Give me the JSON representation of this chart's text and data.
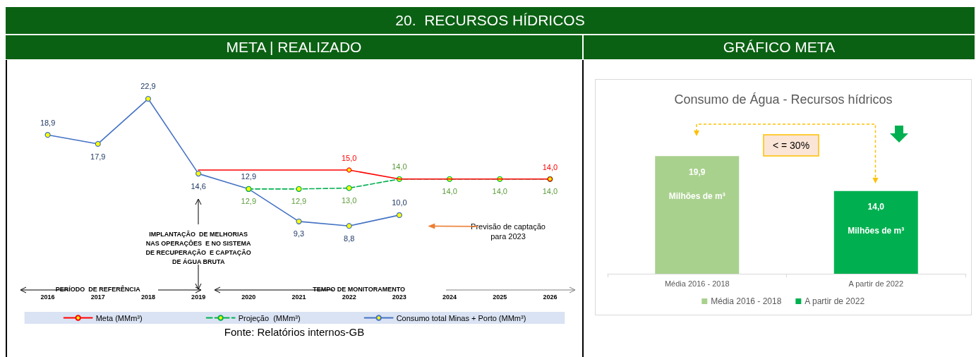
{
  "chart_data": [
    {
      "type": "line",
      "title": "20.  RECURSOS HÍDRICOS",
      "subtitle": "META | REALIZADO",
      "categories": [
        "2016",
        "2017",
        "2018",
        "2019",
        "2020",
        "2021",
        "2022",
        "2023",
        "2024",
        "2025",
        "2026"
      ],
      "series": [
        {
          "name": "Meta (MMm³)",
          "color": "#ff0000",
          "line_style": "solid",
          "marker": "none",
          "values": [
            null,
            null,
            null,
            15.0,
            15.0,
            15.0,
            15.0,
            14.0,
            14.0,
            14.0,
            14.0
          ],
          "value_labels": [
            null,
            null,
            null,
            null,
            null,
            null,
            "15,0",
            null,
            null,
            null,
            "14,0"
          ]
        },
        {
          "name": "Projeção  (MMm³)",
          "color": "#00b050",
          "line_style": "dashed",
          "marker": "circle",
          "values": [
            null,
            null,
            null,
            null,
            12.9,
            12.9,
            13.0,
            14.0,
            14.0,
            14.0,
            14.0
          ],
          "value_labels": [
            null,
            null,
            null,
            null,
            "12,9",
            "12,9",
            "13,0",
            "14,0",
            "14,0",
            "14,0",
            "14,0"
          ]
        },
        {
          "name": "Consumo total Minas + Porto (MMm³)",
          "color": "#4472c4",
          "line_style": "solid",
          "marker": "circle",
          "values": [
            18.9,
            17.9,
            22.9,
            14.6,
            12.9,
            9.3,
            8.8,
            10.0,
            null,
            null,
            null
          ],
          "value_labels": [
            "18,9",
            "17,9",
            "22,9",
            "14,6",
            "12,9",
            "9,3",
            "8,8",
            "10,0",
            null,
            null,
            null
          ]
        }
      ],
      "legend": "bottom",
      "grid": false,
      "annotations": [
        "IMPLANTAÇÃO  DE MELHORIAS\nNAS OPERAÇÕES  E NO SISTEMA\nDE RECUPERAÇÃO  E CAPTAÇÃO\nDE ÁGUA BRUTA",
        "Previsão de captação\npara 2023",
        "PERÍODO  DE REFERÊNCIA",
        "TEMPO DE MONITORAMENTO",
        "Fonte: Relatórios internos-GB"
      ]
    },
    {
      "type": "bar",
      "title": "Consumo de Água - Recursos hídricos",
      "subtitle": "GRÁFICO META",
      "categories": [
        "Média 2016 - 2018",
        "A partir de 2022"
      ],
      "series": [
        {
          "name": "Média 2016 - 2018",
          "color": "#a9d18e",
          "values": [
            19.9,
            null
          ],
          "value_labels": [
            "19,9",
            null
          ]
        },
        {
          "name": "A partir de 2022",
          "color": "#00b050",
          "values": [
            null,
            14.0
          ],
          "value_labels": [
            null,
            "14,0"
          ]
        }
      ],
      "legend": "bottom",
      "grid": false,
      "annotations": [
        "Milhões de m³",
        "Milhões de m³",
        "< = 30%"
      ]
    }
  ]
}
